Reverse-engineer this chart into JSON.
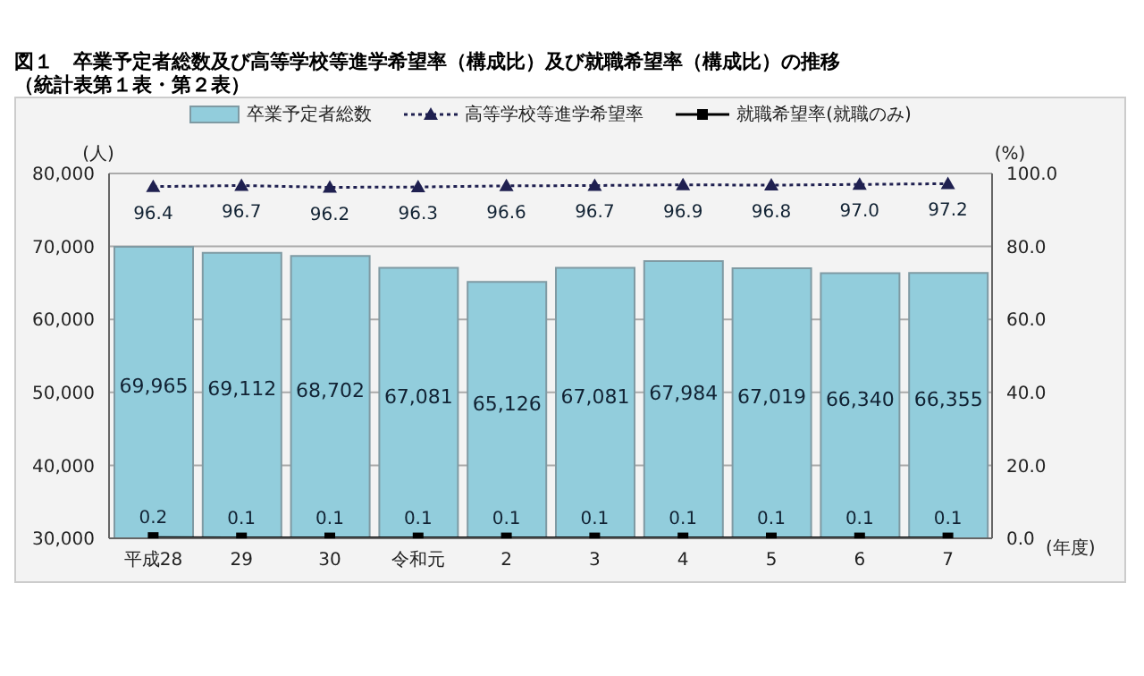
{
  "chart_data": {
    "type": "bar",
    "title": "図１　卒業予定者総数及び高等学校等進学希望率（構成比）及び就職希望率（構成比）の推移",
    "subtitle": "（統計表第１表・第２表）",
    "ylabel": "(人)",
    "y2label": "(%)",
    "xlabel": "(年度)",
    "categories": [
      "平成28",
      "29",
      "30",
      "令和元",
      "2",
      "3",
      "4",
      "5",
      "6",
      "7"
    ],
    "series": [
      {
        "name": "卒業予定者総数",
        "color": "#92cddc",
        "values": [
          69965,
          69112,
          68702,
          67081,
          65126,
          67081,
          67984,
          67019,
          66340,
          66355
        ],
        "value_labels": [
          "69,965",
          "69,112",
          "68,702",
          "67,081",
          "65,126",
          "67,081",
          "67,984",
          "67,019",
          "66,340",
          "66,355"
        ]
      },
      {
        "name": "高等学校等進学希望率",
        "type": "line",
        "axis": "y2",
        "color": "#1f2050",
        "marker": "triangle",
        "line_style": "dotted",
        "values": [
          96.4,
          96.7,
          96.2,
          96.3,
          96.6,
          96.7,
          96.9,
          96.8,
          97.0,
          97.2
        ],
        "value_labels": [
          "96.4",
          "96.7",
          "96.2",
          "96.3",
          "96.6",
          "96.7",
          "96.9",
          "96.8",
          "97.0",
          "97.2"
        ]
      },
      {
        "name": "就職希望率(就職のみ)",
        "type": "line",
        "axis": "y2",
        "color": "#000000",
        "marker": "square",
        "line_style": "solid",
        "values": [
          0.2,
          0.1,
          0.1,
          0.1,
          0.1,
          0.1,
          0.1,
          0.1,
          0.1,
          0.1
        ],
        "value_labels": [
          "0.2",
          "0.1",
          "0.1",
          "0.1",
          "0.1",
          "0.1",
          "0.1",
          "0.1",
          "0.1",
          "0.1"
        ]
      }
    ],
    "ylim": [
      30000,
      80000
    ],
    "yticks": [
      {
        "value": 30000,
        "label": "30,000"
      },
      {
        "value": 40000,
        "label": "40,000"
      },
      {
        "value": 50000,
        "label": "50,000"
      },
      {
        "value": 60000,
        "label": "60,000"
      },
      {
        "value": 70000,
        "label": "70,000"
      },
      {
        "value": 80000,
        "label": "80,000"
      }
    ],
    "y2lim": [
      0,
      100
    ],
    "y2ticks": [
      {
        "value": 0,
        "label": "0.0"
      },
      {
        "value": 20,
        "label": "20.0"
      },
      {
        "value": 40,
        "label": "40.0"
      },
      {
        "value": 60,
        "label": "60.0"
      },
      {
        "value": 80,
        "label": "80.0"
      },
      {
        "value": 100,
        "label": "100.0"
      }
    ],
    "grid": "y",
    "legend": "top"
  }
}
